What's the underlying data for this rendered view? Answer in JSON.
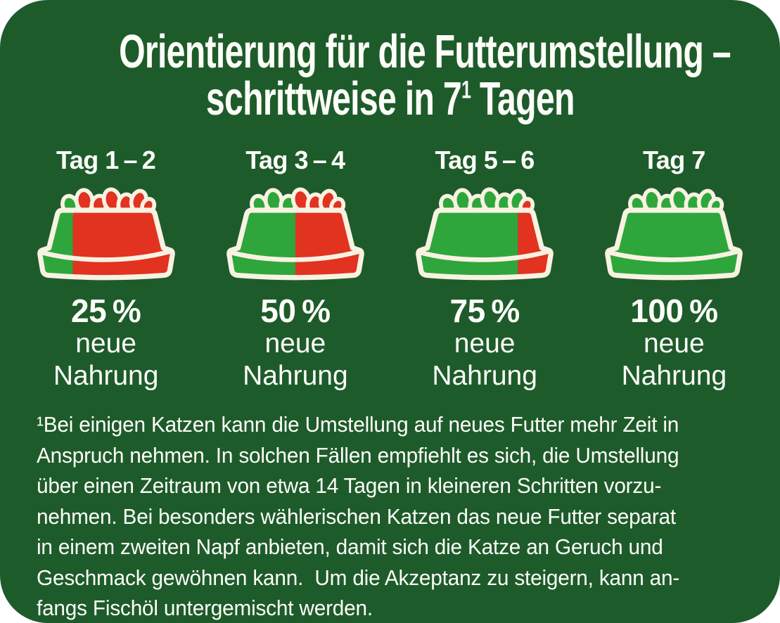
{
  "title": {
    "line1": "Orientierung für die Futterumstellung –",
    "line2_pre": "schrittweise in 7",
    "line2_sup": "1",
    "line2_post": " Tagen"
  },
  "columns": [
    {
      "day": "Tag 1 – 2",
      "percent": 25,
      "percent_label": "25 %",
      "sub1": "neue",
      "sub2": "Nahrung"
    },
    {
      "day": "Tag 3 – 4",
      "percent": 50,
      "percent_label": "50 %",
      "sub1": "neue",
      "sub2": "Nahrung"
    },
    {
      "day": "Tag 5 – 6",
      "percent": 75,
      "percent_label": "75 %",
      "sub1": "neue",
      "sub2": "Nahrung"
    },
    {
      "day": "Tag 7",
      "percent": 100,
      "percent_label": "100 %",
      "sub1": "neue",
      "sub2": "Nahrung"
    }
  ],
  "footnote": "¹Bei einigen Katzen kann die Umstellung auf neues Futter mehr Zeit in\nAnspruch nehmen. In solchen Fällen empfiehlt es sich, die Umstellung\nüber einen Zeitraum von etwa 14 Tagen in kleineren Schritten vorzu-\nnehmen. Bei besonders wählerischen Katzen das neue Futter separat\nin einem zweiten Napf anbieten, damit sich die Katze an Geruch und\nGeschmack gewöhnen kann.  Um die Akzeptanz zu steigern, kann an-\nfangs Fischöl untergemischt werden.",
  "icons": {
    "bowl": "pet-food-bowl-icon"
  },
  "colors": {
    "background": "#1e5b2b",
    "bowl_green": "#2fa63c",
    "bowl_red": "#e23220",
    "outline_cream": "#f8f2e2",
    "text": "#fdfdf8"
  }
}
